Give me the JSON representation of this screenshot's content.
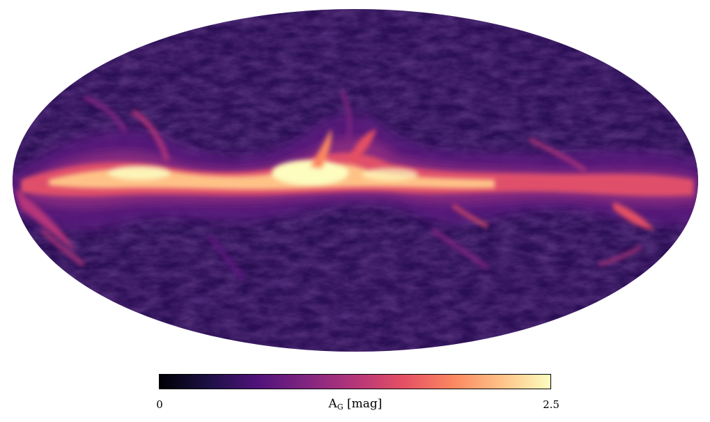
{
  "map": {
    "projection": "mollweide",
    "quantity": "extinction",
    "colormap": "magma",
    "colormap_stops": [
      "#000004",
      "#1c1044",
      "#4f127b",
      "#812581",
      "#b5367a",
      "#e55064",
      "#fb8761",
      "#fec287",
      "#fcfdbf"
    ],
    "background_color": "#2b0f55"
  },
  "colorbar": {
    "min_label": "0",
    "max_label": "2.5",
    "label_main": "A",
    "label_sub": "G",
    "label_unit": "[mag]",
    "range": [
      0,
      2.5
    ]
  }
}
